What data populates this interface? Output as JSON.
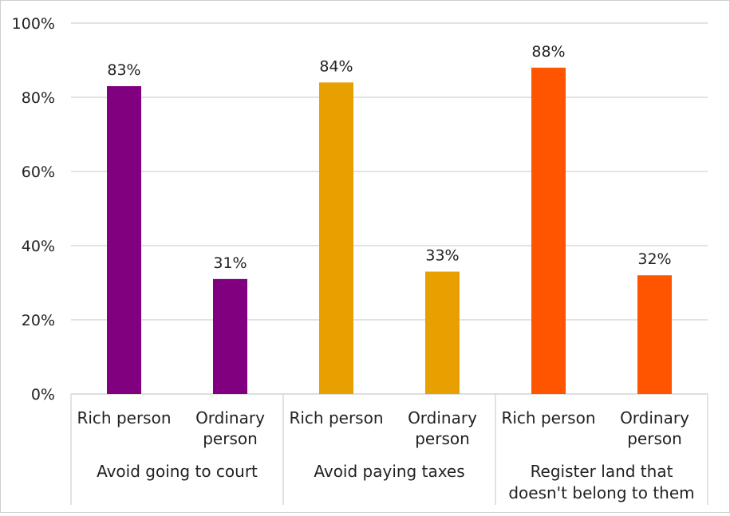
{
  "chart_data": {
    "type": "bar",
    "ylim": [
      0,
      100
    ],
    "y_ticks": [
      "0%",
      "20%",
      "40%",
      "60%",
      "80%",
      "100%"
    ],
    "grid": true,
    "groups": [
      {
        "label_lines": [
          "Avoid going to court"
        ],
        "color": "#800080",
        "bars": [
          {
            "category_lines": [
              "Rich person"
            ],
            "value": 83,
            "label": "83%"
          },
          {
            "category_lines": [
              "Ordinary",
              "person"
            ],
            "value": 31,
            "label": "31%"
          }
        ]
      },
      {
        "label_lines": [
          "Avoid paying taxes"
        ],
        "color": "#E8A000",
        "bars": [
          {
            "category_lines": [
              "Rich person"
            ],
            "value": 84,
            "label": "84%"
          },
          {
            "category_lines": [
              "Ordinary",
              "person"
            ],
            "value": 33,
            "label": "33%"
          }
        ]
      },
      {
        "label_lines": [
          "Register land that",
          "doesn't belong to them"
        ],
        "color": "#FF5500",
        "bars": [
          {
            "category_lines": [
              "Rich person"
            ],
            "value": 88,
            "label": "88%"
          },
          {
            "category_lines": [
              "Ordinary",
              "person"
            ],
            "value": 32,
            "label": "32%"
          }
        ]
      }
    ]
  }
}
